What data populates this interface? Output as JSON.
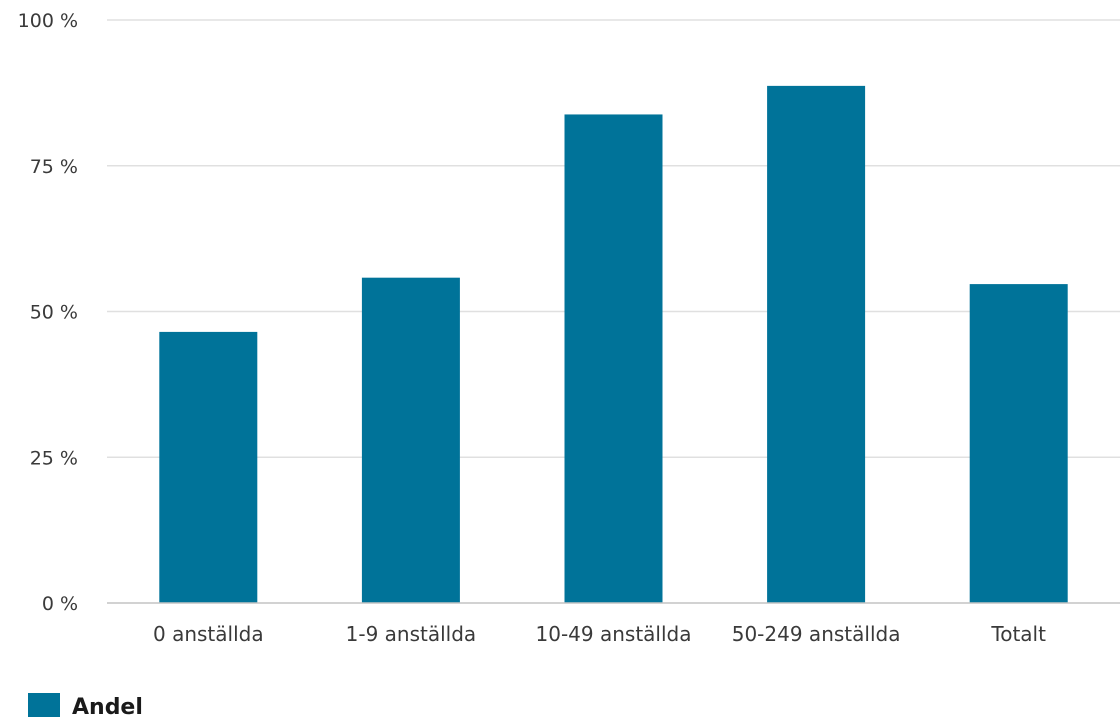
{
  "chart_data": {
    "type": "bar",
    "categories": [
      "0 anställda",
      "1-9 anställda",
      "10-49 anställda",
      "50-249 anställda",
      "Totalt"
    ],
    "series": [
      {
        "name": "Andel",
        "values": [
          46.5,
          55.8,
          83.8,
          88.7,
          54.7
        ]
      }
    ],
    "ylim": [
      0,
      100
    ],
    "yticks": [
      0,
      25,
      50,
      75,
      100
    ],
    "ytick_labels": [
      "0 %",
      "25 %",
      "50 %",
      "75 %",
      "100 %"
    ],
    "grid": true,
    "legend": "bottom-left"
  },
  "colors": {
    "bar": "#007399"
  }
}
